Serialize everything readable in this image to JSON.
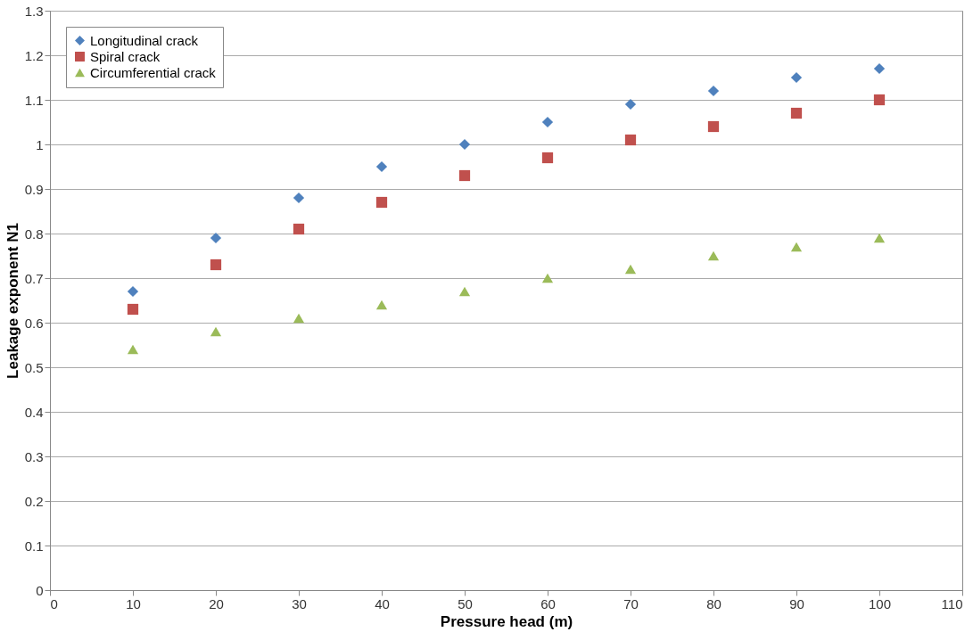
{
  "chart_data": {
    "type": "scatter",
    "xlabel": "Pressure head (m)",
    "ylabel": "Leakage exponent N1",
    "x": [
      10,
      20,
      30,
      40,
      50,
      60,
      70,
      80,
      90,
      100
    ],
    "series": [
      {
        "name": "Longitudinal crack",
        "color": "#4f81bd",
        "marker": "diamond",
        "values": [
          0.67,
          0.79,
          0.88,
          0.95,
          1.0,
          1.05,
          1.09,
          1.12,
          1.15,
          1.17
        ]
      },
      {
        "name": "Spiral crack",
        "color": "#c0504d",
        "marker": "square",
        "values": [
          0.63,
          0.73,
          0.81,
          0.87,
          0.93,
          0.97,
          1.01,
          1.04,
          1.07,
          1.1
        ]
      },
      {
        "name": "Circumferential crack",
        "color": "#9bbb59",
        "marker": "triangle",
        "values": [
          0.54,
          0.58,
          0.61,
          0.64,
          0.67,
          0.7,
          0.72,
          0.75,
          0.77,
          0.79
        ]
      }
    ],
    "xlim": [
      0,
      110
    ],
    "xticks": [
      0,
      10,
      20,
      30,
      40,
      50,
      60,
      70,
      80,
      90,
      100,
      110
    ],
    "ylim": [
      0,
      1.3
    ],
    "yticks": [
      0,
      0.1,
      0.2,
      0.3,
      0.4,
      0.5,
      0.6,
      0.7,
      0.8,
      0.9,
      1,
      1.1,
      1.2,
      1.3
    ],
    "grid": "y",
    "legend": "top left"
  }
}
